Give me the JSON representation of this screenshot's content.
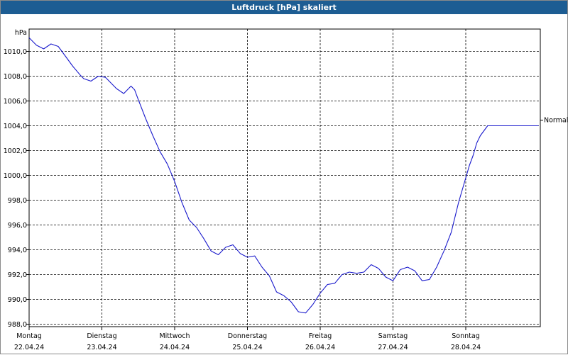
{
  "window": {
    "title": "Luftdruck [hPa] skaliert"
  },
  "chart_data": {
    "type": "line",
    "title": "Luftdruck [hPa] skaliert",
    "ylabel": "hPa",
    "xlabel": "",
    "ylim": [
      987.8,
      1011.8
    ],
    "yticks": [
      988,
      990,
      992,
      994,
      996,
      998,
      1000,
      1002,
      1004,
      1006,
      1008,
      1010
    ],
    "ytick_labels": [
      "988,0",
      "990,0",
      "992,0",
      "994,0",
      "996,0",
      "998,0",
      "1000,0",
      "1002,0",
      "1004,0",
      "1006,0",
      "1008,0",
      "1010,0"
    ],
    "xlim": [
      0,
      7
    ],
    "grid": true,
    "days": [
      {
        "name": "Montag",
        "date": "22.04.24"
      },
      {
        "name": "Dienstag",
        "date": "23.04.24"
      },
      {
        "name": "Mittwoch",
        "date": "24.04.24"
      },
      {
        "name": "Donnerstag",
        "date": "25.04.24"
      },
      {
        "name": "Freitag",
        "date": "26.04.24"
      },
      {
        "name": "Samstag",
        "date": "27.04.24"
      },
      {
        "name": "Sonntag",
        "date": "28.04.24"
      }
    ],
    "series": [
      {
        "name": "Luftdruck",
        "color": "#1a1acc",
        "x": [
          0,
          0.1,
          0.2,
          0.3,
          0.4,
          0.5,
          0.6,
          0.7,
          0.75,
          0.85,
          0.95,
          1.05,
          1.2,
          1.3,
          1.4,
          1.45,
          1.5,
          1.6,
          1.7,
          1.8,
          1.9,
          2.0,
          2.1,
          2.2,
          2.3,
          2.4,
          2.5,
          2.6,
          2.7,
          2.8,
          2.9,
          3.0,
          3.1,
          3.2,
          3.3,
          3.4,
          3.5,
          3.6,
          3.7,
          3.8,
          3.9,
          4.0,
          4.1,
          4.2,
          4.3,
          4.4,
          4.5,
          4.6,
          4.7,
          4.8,
          4.9,
          5.0,
          5.1,
          5.2,
          5.3,
          5.4,
          5.5,
          5.6,
          5.7,
          5.8,
          5.9,
          5.95,
          6.0,
          6.05,
          6.1,
          6.15,
          6.2,
          6.3,
          6.4,
          6.5,
          6.6,
          6.7,
          6.8,
          6.9,
          7.0
        ],
        "values": [
          1011.1,
          1010.5,
          1010.2,
          1010.6,
          1010.4,
          1009.6,
          1008.8,
          1008.1,
          1007.8,
          1007.6,
          1008.0,
          1007.9,
          1007.0,
          1006.6,
          1007.2,
          1006.9,
          1006.1,
          1004.6,
          1003.2,
          1001.9,
          1000.9,
          999.5,
          997.8,
          996.4,
          995.8,
          994.9,
          993.9,
          993.6,
          994.2,
          994.4,
          993.7,
          993.4,
          993.5,
          992.6,
          991.9,
          990.6,
          990.3,
          989.8,
          989.0,
          988.9,
          989.6,
          990.5,
          991.2,
          991.3,
          992.0,
          992.2,
          992.1,
          992.2,
          992.8,
          992.5,
          991.8,
          991.5,
          992.4,
          992.6,
          992.3,
          991.5,
          991.6,
          992.6,
          993.9,
          995.4,
          997.8,
          998.8,
          999.8,
          1000.8,
          1001.6,
          1002.6,
          1003.2,
          1004.0,
          1004.0,
          1004.0,
          1004.0,
          1004.0,
          1004.0,
          1004.0,
          1004.0
        ]
      }
    ],
    "reference_lines": [
      {
        "label": "Normal",
        "value": 1004.0
      }
    ]
  }
}
